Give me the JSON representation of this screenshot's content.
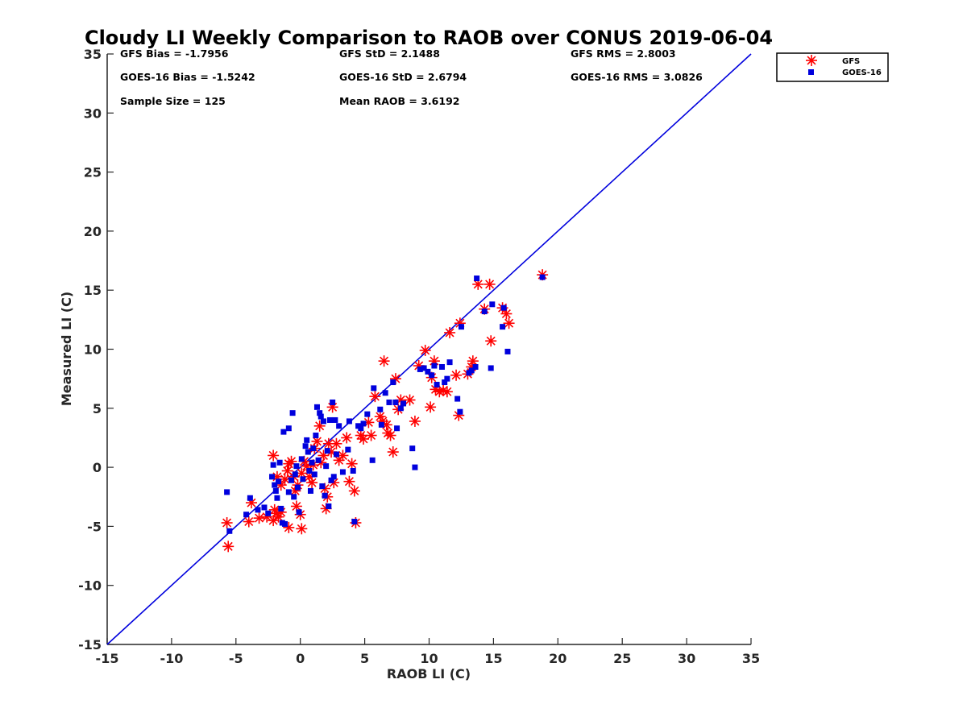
{
  "chart_data": {
    "type": "scatter",
    "title": "Cloudy LI Weekly Comparison to RAOB over CONUS 2019-06-04",
    "xlabel": "RAOB LI (C)",
    "ylabel": "Measured LI (C)",
    "xlim": [
      -15,
      35
    ],
    "ylim": [
      -15,
      35
    ],
    "x_ticks": [
      "-15",
      "-10",
      "-5",
      "0",
      "5",
      "10",
      "15",
      "20",
      "25",
      "30",
      "35"
    ],
    "y_ticks": [
      "-15",
      "-10",
      "-5",
      "0",
      "5",
      "10",
      "15",
      "20",
      "25",
      "30",
      "35"
    ],
    "grid": false,
    "legend_position": "outside-top-right",
    "reference_line": {
      "x": [
        -15,
        35
      ],
      "y": [
        -15,
        35
      ],
      "color": "#0000dd"
    },
    "stats": {
      "gfs_bias": "GFS Bias = -1.7956",
      "goes_bias": "GOES-16 Bias = -1.5242",
      "sample_size": "Sample Size = 125",
      "gfs_std": "GFS StD = 2.1488",
      "goes_std": "GOES-16 StD = 2.6794",
      "mean_raob": "Mean RAOB = 3.6192",
      "gfs_rms": "GFS RMS = 2.8003",
      "goes_rms": "GOES-16 RMS = 3.0826"
    },
    "series": [
      {
        "name": "GFS",
        "marker": "asterisk",
        "color": "#ff0000",
        "points": [
          [
            -5.7,
            -4.7
          ],
          [
            -5.6,
            -6.7
          ],
          [
            -4.0,
            -4.6
          ],
          [
            -3.8,
            -3.0
          ],
          [
            -3.2,
            -4.3
          ],
          [
            -2.6,
            -4.2
          ],
          [
            -2.1,
            -4.5
          ],
          [
            -2.0,
            -3.6
          ],
          [
            -1.8,
            -3.9
          ],
          [
            -1.7,
            -4.2
          ],
          [
            -1.5,
            -3.8
          ],
          [
            -2.1,
            1.0
          ],
          [
            -1.8,
            -0.8
          ],
          [
            -1.5,
            -1.5
          ],
          [
            -1.2,
            -1.0
          ],
          [
            -1.0,
            -0.3
          ],
          [
            -0.9,
            0.3
          ],
          [
            -0.7,
            0.5
          ],
          [
            -0.5,
            -0.8
          ],
          [
            -0.4,
            -2.0
          ],
          [
            -0.3,
            -3.3
          ],
          [
            -0.2,
            -1.5
          ],
          [
            0.1,
            -0.5
          ],
          [
            0.0,
            -4.0
          ],
          [
            0.1,
            -5.2
          ],
          [
            -0.9,
            -5.1
          ],
          [
            0.3,
            0.5
          ],
          [
            0.5,
            0.1
          ],
          [
            0.7,
            -0.8
          ],
          [
            0.9,
            -1.3
          ],
          [
            1.0,
            0.2
          ],
          [
            1.1,
            1.6
          ],
          [
            1.3,
            2.2
          ],
          [
            1.5,
            3.5
          ],
          [
            1.6,
            0.4
          ],
          [
            1.8,
            1.0
          ],
          [
            1.9,
            -1.8
          ],
          [
            2.0,
            -3.5
          ],
          [
            2.1,
            -2.5
          ],
          [
            2.2,
            2.0
          ],
          [
            2.4,
            1.3
          ],
          [
            2.5,
            5.1
          ],
          [
            2.6,
            -1.3
          ],
          [
            2.8,
            2.0
          ],
          [
            3.0,
            0.6
          ],
          [
            3.3,
            1.0
          ],
          [
            3.6,
            2.5
          ],
          [
            3.8,
            -1.2
          ],
          [
            4.0,
            0.3
          ],
          [
            4.2,
            -2.0
          ],
          [
            4.3,
            -4.7
          ],
          [
            4.7,
            2.7
          ],
          [
            4.9,
            2.4
          ],
          [
            5.3,
            3.8
          ],
          [
            5.5,
            2.7
          ],
          [
            5.8,
            6.0
          ],
          [
            6.2,
            4.3
          ],
          [
            6.4,
            3.9
          ],
          [
            6.5,
            9.0
          ],
          [
            6.7,
            3.6
          ],
          [
            6.8,
            2.9
          ],
          [
            7.0,
            2.7
          ],
          [
            7.2,
            1.3
          ],
          [
            7.4,
            7.5
          ],
          [
            7.6,
            4.9
          ],
          [
            7.8,
            5.7
          ],
          [
            8.5,
            5.7
          ],
          [
            8.9,
            3.9
          ],
          [
            9.2,
            8.6
          ],
          [
            9.7,
            9.9
          ],
          [
            10.1,
            5.1
          ],
          [
            10.2,
            7.6
          ],
          [
            10.4,
            9.0
          ],
          [
            10.5,
            6.6
          ],
          [
            10.8,
            6.4
          ],
          [
            11.1,
            6.5
          ],
          [
            11.4,
            6.4
          ],
          [
            11.6,
            11.4
          ],
          [
            12.1,
            7.8
          ],
          [
            12.3,
            4.4
          ],
          [
            12.4,
            12.2
          ],
          [
            13.0,
            7.9
          ],
          [
            13.3,
            8.5
          ],
          [
            13.4,
            9.0
          ],
          [
            13.8,
            15.5
          ],
          [
            14.3,
            13.4
          ],
          [
            14.7,
            15.5
          ],
          [
            14.8,
            10.7
          ],
          [
            15.7,
            13.5
          ],
          [
            16.0,
            13.0
          ],
          [
            16.2,
            12.2
          ],
          [
            18.8,
            16.3
          ]
        ]
      },
      {
        "name": "GOES-16",
        "marker": "square",
        "color": "#0000dd",
        "points": [
          [
            -5.7,
            -2.1
          ],
          [
            -5.5,
            -5.4
          ],
          [
            -4.2,
            -4.0
          ],
          [
            -3.9,
            -2.6
          ],
          [
            -3.3,
            -3.6
          ],
          [
            -2.8,
            -3.4
          ],
          [
            -2.5,
            -3.9
          ],
          [
            -2.2,
            -0.8
          ],
          [
            -2.1,
            0.2
          ],
          [
            -2.0,
            -1.5
          ],
          [
            -1.9,
            -2.0
          ],
          [
            -1.8,
            -2.6
          ],
          [
            -1.7,
            -1.2
          ],
          [
            -1.6,
            0.4
          ],
          [
            -1.5,
            -3.5
          ],
          [
            -1.4,
            -4.7
          ],
          [
            -1.2,
            -4.8
          ],
          [
            -1.3,
            3.0
          ],
          [
            -0.9,
            3.3
          ],
          [
            -0.6,
            4.6
          ],
          [
            -0.9,
            -2.1
          ],
          [
            -0.7,
            -1.1
          ],
          [
            -0.5,
            -2.5
          ],
          [
            -0.4,
            -0.6
          ],
          [
            -0.3,
            0.1
          ],
          [
            -0.2,
            -1.7
          ],
          [
            -0.1,
            -3.8
          ],
          [
            0.1,
            0.7
          ],
          [
            0.2,
            -1.0
          ],
          [
            0.4,
            1.8
          ],
          [
            0.5,
            2.3
          ],
          [
            0.6,
            1.3
          ],
          [
            0.7,
            -0.3
          ],
          [
            0.8,
            -2.0
          ],
          [
            0.9,
            0.4
          ],
          [
            1.0,
            1.6
          ],
          [
            1.1,
            -0.6
          ],
          [
            1.2,
            2.7
          ],
          [
            1.3,
            5.1
          ],
          [
            1.4,
            0.6
          ],
          [
            1.5,
            4.6
          ],
          [
            1.6,
            4.3
          ],
          [
            1.7,
            -1.6
          ],
          [
            1.8,
            3.9
          ],
          [
            1.9,
            -2.4
          ],
          [
            2.0,
            0.1
          ],
          [
            2.1,
            1.4
          ],
          [
            2.2,
            -3.3
          ],
          [
            2.3,
            4.0
          ],
          [
            2.4,
            -1.1
          ],
          [
            2.5,
            5.5
          ],
          [
            2.6,
            -0.8
          ],
          [
            2.7,
            4.0
          ],
          [
            2.8,
            1.1
          ],
          [
            3.0,
            3.5
          ],
          [
            3.3,
            -0.4
          ],
          [
            3.7,
            1.5
          ],
          [
            3.8,
            3.9
          ],
          [
            4.1,
            -0.3
          ],
          [
            4.2,
            -4.6
          ],
          [
            4.5,
            3.5
          ],
          [
            4.7,
            3.3
          ],
          [
            4.9,
            3.7
          ],
          [
            5.2,
            4.5
          ],
          [
            5.6,
            0.6
          ],
          [
            5.7,
            6.7
          ],
          [
            6.2,
            4.9
          ],
          [
            6.3,
            3.6
          ],
          [
            6.6,
            6.3
          ],
          [
            6.9,
            5.5
          ],
          [
            7.2,
            7.2
          ],
          [
            7.4,
            5.5
          ],
          [
            7.5,
            3.3
          ],
          [
            7.8,
            5.0
          ],
          [
            8.0,
            5.4
          ],
          [
            8.7,
            1.6
          ],
          [
            8.9,
            0.0
          ],
          [
            9.3,
            8.3
          ],
          [
            9.6,
            8.4
          ],
          [
            9.9,
            8.1
          ],
          [
            10.2,
            7.8
          ],
          [
            10.4,
            8.6
          ],
          [
            10.6,
            7.0
          ],
          [
            11.0,
            8.5
          ],
          [
            11.2,
            7.2
          ],
          [
            11.4,
            7.5
          ],
          [
            11.6,
            8.9
          ],
          [
            12.2,
            5.8
          ],
          [
            12.4,
            4.7
          ],
          [
            12.5,
            11.9
          ],
          [
            13.1,
            8.0
          ],
          [
            13.3,
            8.2
          ],
          [
            13.6,
            8.5
          ],
          [
            13.7,
            16.0
          ],
          [
            14.3,
            13.2
          ],
          [
            14.8,
            8.4
          ],
          [
            14.9,
            13.8
          ],
          [
            15.7,
            11.9
          ],
          [
            15.8,
            13.5
          ],
          [
            16.1,
            9.8
          ],
          [
            18.8,
            16.1
          ]
        ]
      }
    ]
  }
}
